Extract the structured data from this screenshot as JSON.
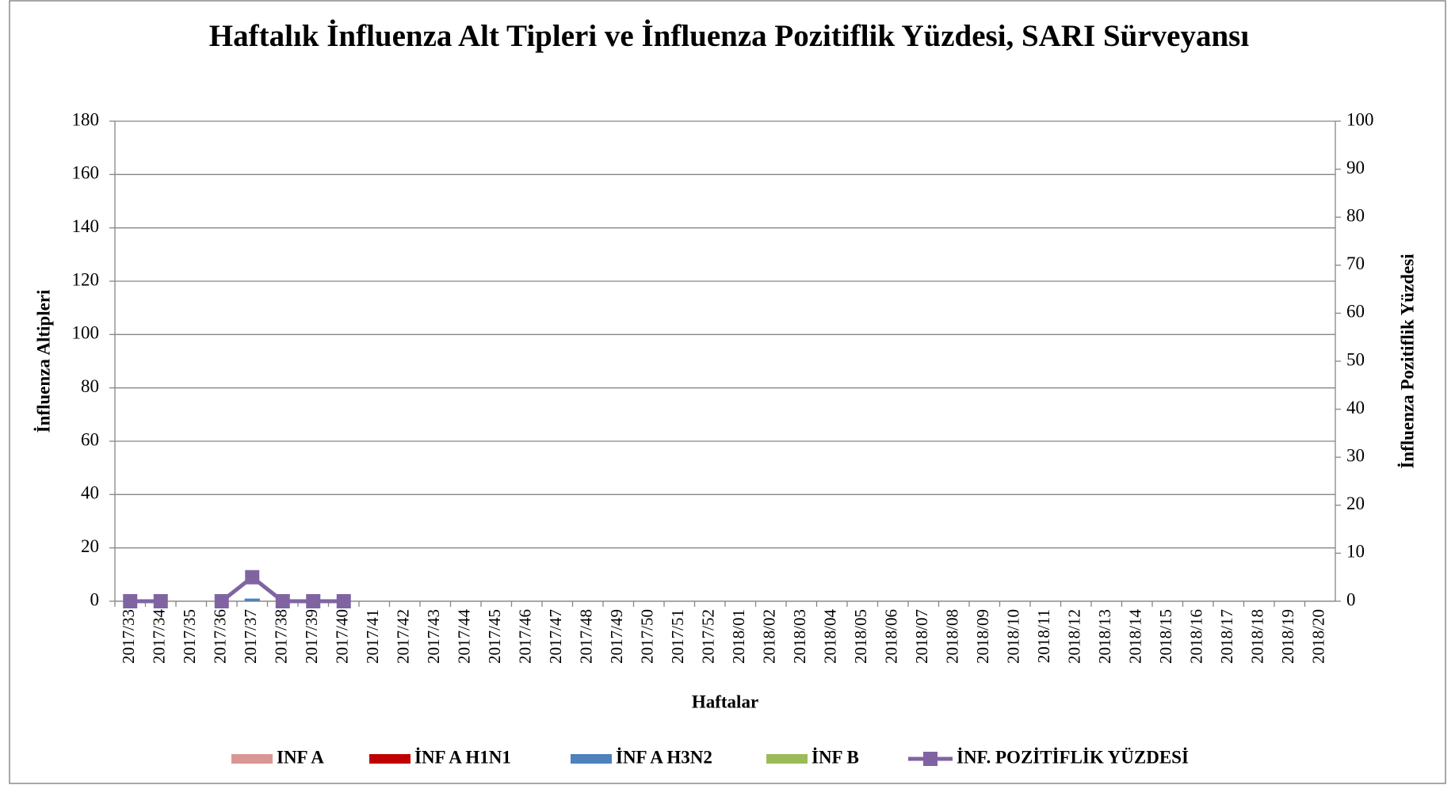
{
  "chart_data": {
    "type": "bar",
    "title": "Haftalık İnfluenza Alt Tipleri ve İnfluenza Pozitiflik Yüzdesi, SARI Sürveyansı",
    "x_label": "Haftalar",
    "y_label": "İnfluenza Altipleri",
    "y2_label": "İnfluenza Pozitiflik Yüzdesi",
    "categories": [
      "2017/33",
      "2017/34",
      "2017/35",
      "2017/36",
      "2017/37",
      "2017/38",
      "2017/39",
      "2017/40",
      "2017/41",
      "2017/42",
      "2017/43",
      "2017/44",
      "2017/45",
      "2017/46",
      "2017/47",
      "2017/48",
      "2017/49",
      "2017/50",
      "2017/51",
      "2017/52",
      "2018/01",
      "2018/02",
      "2018/03",
      "2018/04",
      "2018/05",
      "2018/06",
      "2018/07",
      "2018/08",
      "2018/09",
      "2018/10",
      "2018/11",
      "2018/12",
      "2018/13",
      "2018/14",
      "2018/15",
      "2018/16",
      "2018/17",
      "2018/18",
      "2018/19",
      "2018/20"
    ],
    "series": [
      {
        "name": "INF A",
        "color": "#d99694",
        "type": "bar",
        "values": [
          0,
          0,
          null,
          0,
          0,
          0,
          0,
          0,
          null,
          null,
          null,
          null,
          null,
          null,
          null,
          null,
          null,
          null,
          null,
          null,
          null,
          null,
          null,
          null,
          null,
          null,
          null,
          null,
          null,
          null,
          null,
          null,
          null,
          null,
          null,
          null,
          null,
          null,
          null,
          null
        ]
      },
      {
        "name": "İNF A H1N1",
        "color": "#c00000",
        "type": "bar",
        "values": [
          0,
          0,
          null,
          0,
          0,
          0,
          0,
          0,
          null,
          null,
          null,
          null,
          null,
          null,
          null,
          null,
          null,
          null,
          null,
          null,
          null,
          null,
          null,
          null,
          null,
          null,
          null,
          null,
          null,
          null,
          null,
          null,
          null,
          null,
          null,
          null,
          null,
          null,
          null,
          null
        ]
      },
      {
        "name": "İNF A H3N2",
        "color": "#4f81bd",
        "type": "bar",
        "values": [
          0,
          0,
          null,
          0,
          1,
          0,
          0,
          0,
          null,
          null,
          null,
          null,
          null,
          null,
          null,
          null,
          null,
          null,
          null,
          null,
          null,
          null,
          null,
          null,
          null,
          null,
          null,
          null,
          null,
          null,
          null,
          null,
          null,
          null,
          null,
          null,
          null,
          null,
          null,
          null
        ]
      },
      {
        "name": "İNF B",
        "color": "#9bbb59",
        "type": "bar",
        "values": [
          0,
          0,
          null,
          0,
          0,
          0,
          0,
          0,
          null,
          null,
          null,
          null,
          null,
          null,
          null,
          null,
          null,
          null,
          null,
          null,
          null,
          null,
          null,
          null,
          null,
          null,
          null,
          null,
          null,
          null,
          null,
          null,
          null,
          null,
          null,
          null,
          null,
          null,
          null,
          null
        ]
      },
      {
        "name": "İNF. POZİTİFLİK YÜZDESİ",
        "color": "#8064a2",
        "type": "line",
        "axis": "y2",
        "values": [
          0,
          0,
          null,
          0,
          5,
          0,
          0,
          0,
          null,
          null,
          null,
          null,
          null,
          null,
          null,
          null,
          null,
          null,
          null,
          null,
          null,
          null,
          null,
          null,
          null,
          null,
          null,
          null,
          null,
          null,
          null,
          null,
          null,
          null,
          null,
          null,
          null,
          null,
          null,
          null
        ]
      }
    ],
    "ylim": [
      0,
      180
    ],
    "yticks": [
      0,
      20,
      40,
      60,
      80,
      100,
      120,
      140,
      160,
      180
    ],
    "y2lim": [
      0,
      100
    ],
    "y2ticks": [
      0,
      10,
      20,
      30,
      40,
      50,
      60,
      70,
      80,
      90,
      100
    ],
    "grid": true,
    "legend": "bottom"
  }
}
